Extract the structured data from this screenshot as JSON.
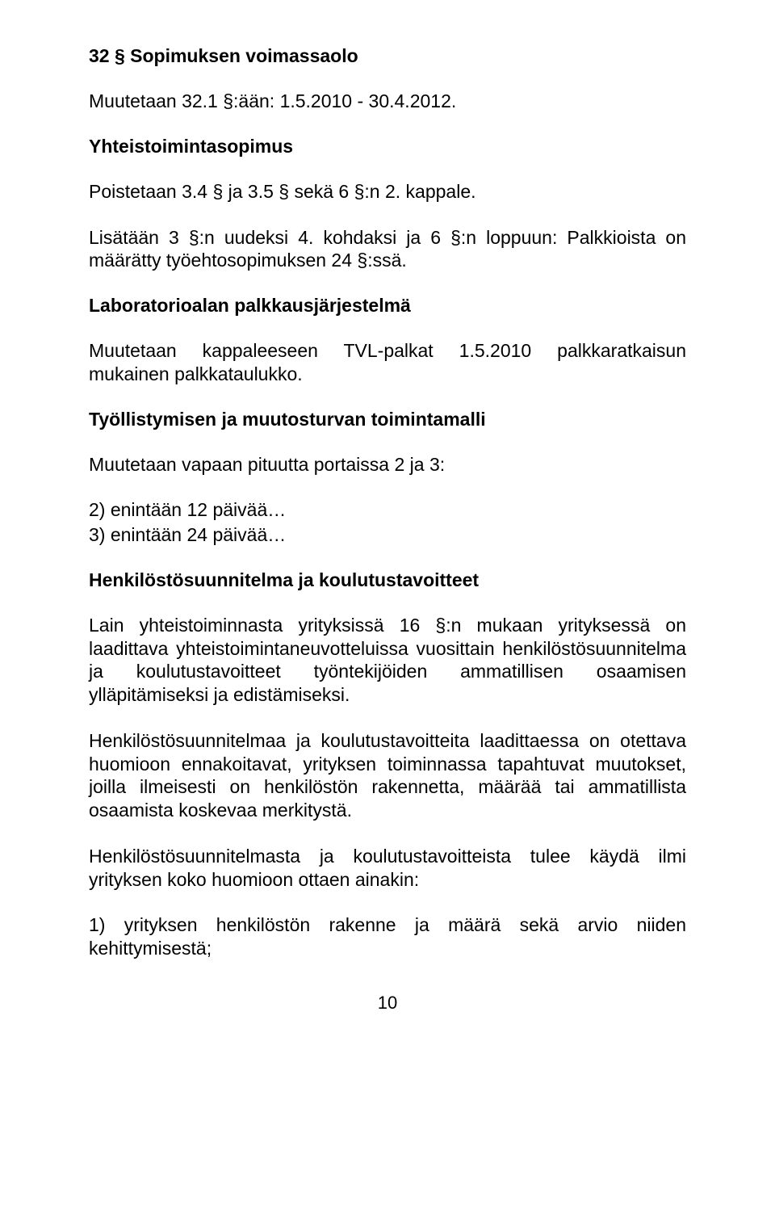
{
  "section1": {
    "title": "32 § Sopimuksen voimassaolo",
    "p1": "Muutetaan 32.1 §:ään: 1.5.2010 - 30.4.2012."
  },
  "section2": {
    "title": "Yhteistoimintasopimus",
    "p1": "Poistetaan 3.4 § ja 3.5 § sekä 6 §:n 2. kappale.",
    "p2": "Lisätään 3 §:n uudeksi 4. kohdaksi ja 6 §:n loppuun: Palkkioista on määrätty työehtosopimuksen 24 §:ssä."
  },
  "section3": {
    "title": "Laboratorioalan palkkausjärjestelmä",
    "p1": "Muutetaan kappaleeseen TVL-palkat 1.5.2010 palkkaratkaisun mukainen palkkataulukko."
  },
  "section4": {
    "title": "Työllistymisen ja muutosturvan toimintamalli",
    "p1": "Muutetaan vapaan pituutta portaissa 2 ja 3:",
    "item1": "2) enintään 12 päivää…",
    "item2": "3) enintään 24 päivää…"
  },
  "section5": {
    "title": "Henkilöstösuunnitelma ja koulutustavoitteet",
    "p1": "Lain yhteistoiminnasta yrityksissä 16 §:n mukaan yrityksessä on laadittava yhteistoimintaneuvotteluissa vuosittain henkilöstösuunnitelma ja koulutustavoitteet työntekijöiden ammatillisen osaamisen ylläpitämiseksi ja edistämiseksi.",
    "p2": "Henkilöstösuunnitelmaa ja koulutustavoitteita laadittaessa on otettava huomioon ennakoitavat, yrityksen toiminnassa tapahtuvat muutokset, joilla ilmeisesti on henkilöstön rakennetta, määrää tai ammatillista osaamista koskevaa merkitystä.",
    "p3": "Henkilöstösuunnitelmasta ja koulutustavoitteista tulee käydä ilmi yrityksen koko huomioon ottaen ainakin:",
    "p4": "1) yrityksen henkilöstön rakenne ja määrä sekä arvio niiden kehittymisestä;"
  },
  "pageNumber": "10"
}
